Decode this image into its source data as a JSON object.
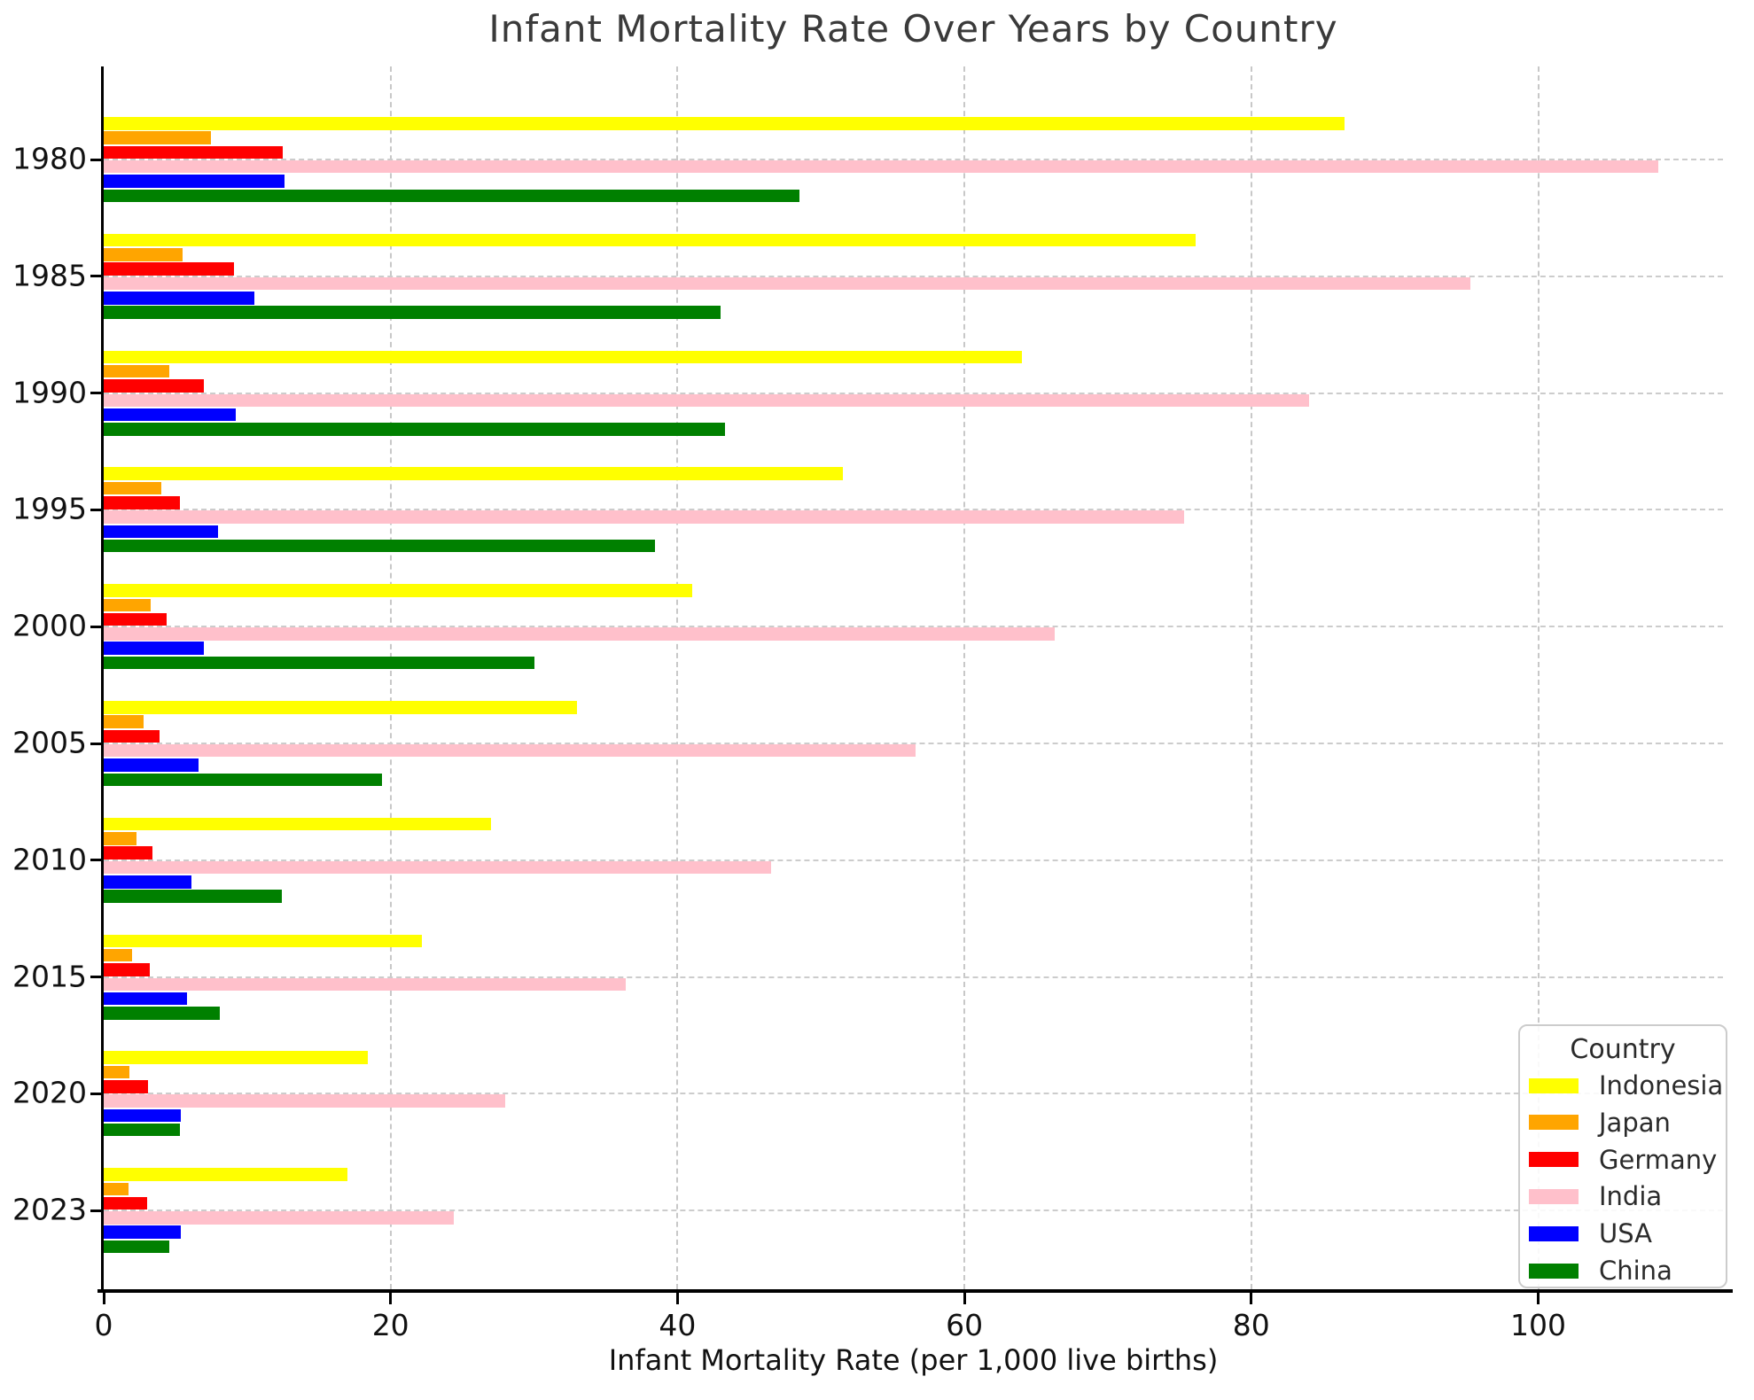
{
  "chart_data": {
    "type": "bar",
    "orientation": "horizontal",
    "title": "Infant Mortality Rate Over Years by Country",
    "xlabel": "Infant Mortality Rate (per 1,000 live births)",
    "ylabel": "",
    "categories": [
      "1980",
      "1985",
      "1990",
      "1995",
      "2000",
      "2005",
      "2010",
      "2015",
      "2020",
      "2023"
    ],
    "series": [
      {
        "name": "Indonesia",
        "color": "#FFFF00",
        "values": [
          86.5,
          76.1,
          64.0,
          51.5,
          41.0,
          33.0,
          27.0,
          22.2,
          18.4,
          17.0
        ]
      },
      {
        "name": "Japan",
        "color": "#FFA500",
        "values": [
          7.5,
          5.5,
          4.6,
          4.0,
          3.3,
          2.8,
          2.3,
          2.0,
          1.8,
          1.7
        ]
      },
      {
        "name": "Germany",
        "color": "#FF0000",
        "values": [
          12.5,
          9.1,
          7.0,
          5.3,
          4.4,
          3.9,
          3.4,
          3.2,
          3.1,
          3.0
        ]
      },
      {
        "name": "India",
        "color": "#FFC0CB",
        "values": [
          108.4,
          95.3,
          84.0,
          75.3,
          66.3,
          56.6,
          46.5,
          36.4,
          28.0,
          24.4
        ]
      },
      {
        "name": "USA",
        "color": "#0000FF",
        "values": [
          12.6,
          10.5,
          9.2,
          8.0,
          7.0,
          6.6,
          6.1,
          5.8,
          5.4,
          5.4
        ]
      },
      {
        "name": "China",
        "color": "#008000",
        "values": [
          48.5,
          43.0,
          43.3,
          38.4,
          30.0,
          19.4,
          12.4,
          8.1,
          5.3,
          4.6
        ]
      }
    ],
    "x_ticks": [
      0,
      20,
      40,
      60,
      80,
      100
    ],
    "xlim": [
      0,
      112.9
    ],
    "grid": true,
    "legend": {
      "title": "Country",
      "position": "lower-right"
    }
  }
}
